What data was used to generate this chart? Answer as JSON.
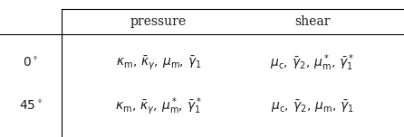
{
  "col_headers": [
    "pressure",
    "shear"
  ],
  "row_headers": [
    "$0^\\circ$",
    "$45^\\circ$"
  ],
  "cells": [
    [
      "$\\kappa_{\\mathrm{m}},\\,\\bar{\\kappa}_{\\gamma},\\,\\mu_{\\mathrm{m}},\\,\\bar{\\gamma}_1$",
      "$\\mu_{\\mathrm{c}},\\,\\bar{\\gamma}_2,\\,\\mu^*_{\\mathrm{m}},\\,\\bar{\\gamma}^*_1$"
    ],
    [
      "$\\kappa_{\\mathrm{m}},\\,\\bar{\\kappa}_{\\gamma},\\,\\mu^*_{\\mathrm{m}},\\,\\bar{\\gamma}^*_1$",
      "$\\mu_{\\mathrm{c}},\\,\\bar{\\gamma}_2,\\,\\mu_{\\mathrm{m}},\\,\\bar{\\gamma}_1$"
    ]
  ],
  "figsize": [
    4.46,
    1.52
  ],
  "dpi": 100,
  "bg_color": "#ffffff",
  "line_color": "#000000",
  "text_color": "#1a1a1a",
  "header_fontsize": 10,
  "cell_fontsize": 10,
  "row_header_fontsize": 10
}
